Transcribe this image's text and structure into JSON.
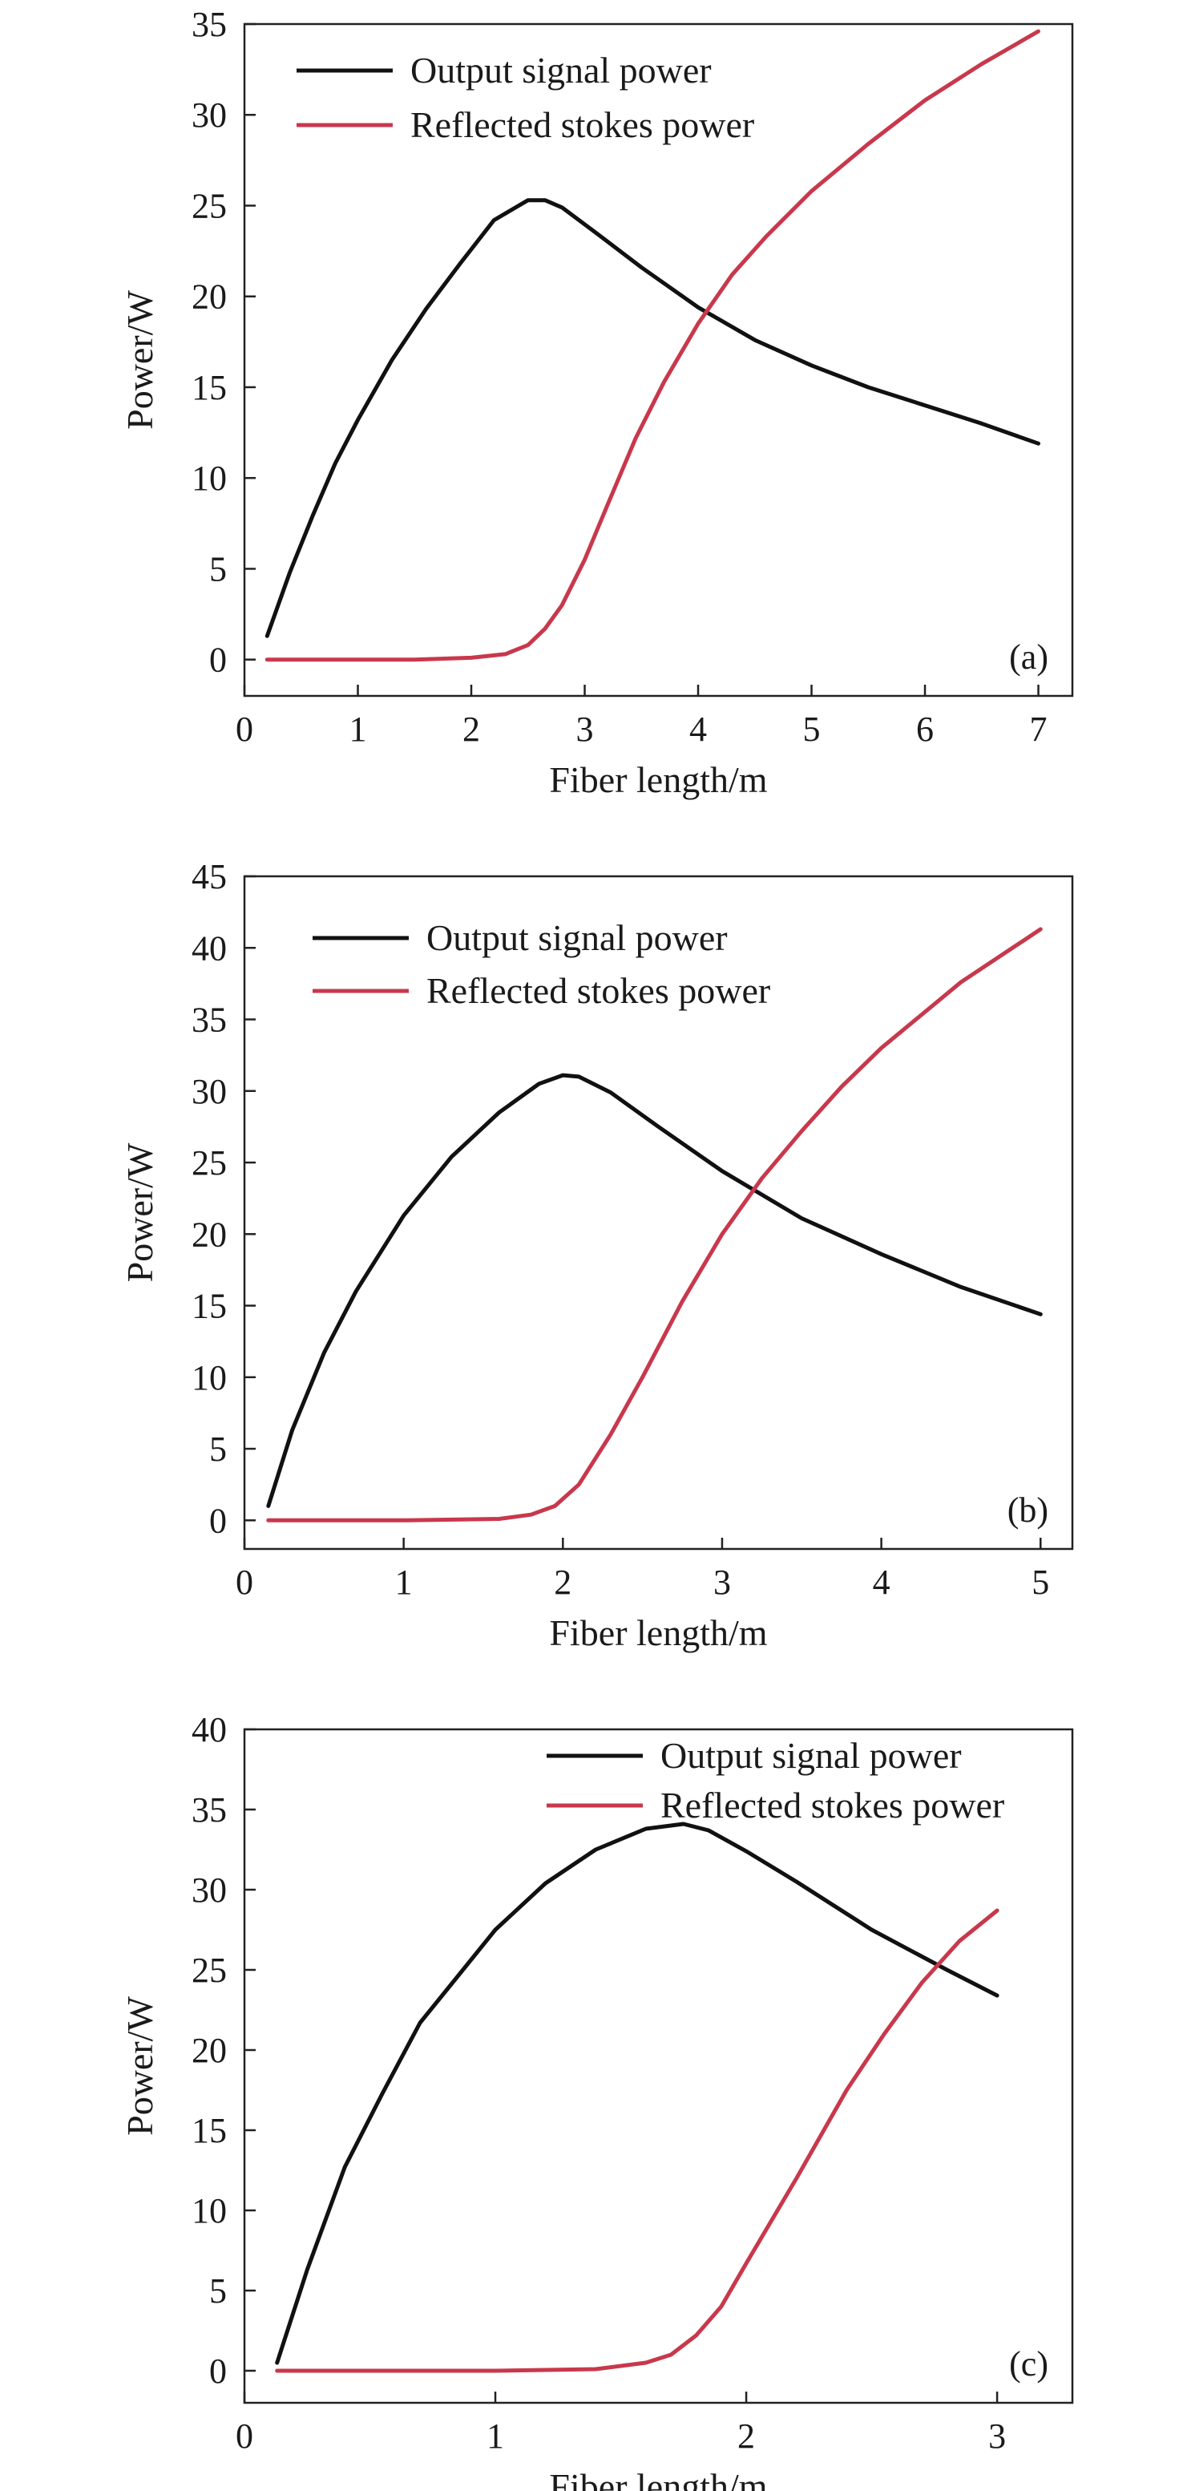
{
  "colors": {
    "signal": "#111111",
    "stokes": "#c8384c",
    "axis": "#222222"
  },
  "chart_data": [
    {
      "type": "line",
      "panel_label": "(a)",
      "xlabel": "Fiber length/m",
      "ylabel": "Power/W",
      "xlim": [
        0,
        7.3
      ],
      "ylim": [
        -2,
        35
      ],
      "xticks": [
        0,
        1,
        2,
        3,
        4,
        5,
        6,
        7
      ],
      "yticks": [
        0,
        5,
        10,
        15,
        20,
        25,
        30,
        35
      ],
      "legend_position": "top-left",
      "series": [
        {
          "name": "Output signal power",
          "color": "#111111",
          "x": [
            0.2,
            0.4,
            0.6,
            0.8,
            1.0,
            1.3,
            1.6,
            1.9,
            2.2,
            2.5,
            2.65,
            2.8,
            3.1,
            3.5,
            4.0,
            4.5,
            5.0,
            5.5,
            6.0,
            6.5,
            7.0
          ],
          "y": [
            1.3,
            4.8,
            7.9,
            10.8,
            13.2,
            16.5,
            19.3,
            21.8,
            24.2,
            25.3,
            25.3,
            24.9,
            23.5,
            21.6,
            19.4,
            17.6,
            16.2,
            15.0,
            14.0,
            13.0,
            11.9
          ]
        },
        {
          "name": "Reflected stokes power",
          "color": "#c8384c",
          "x": [
            0.2,
            1.0,
            1.5,
            2.0,
            2.3,
            2.5,
            2.65,
            2.8,
            3.0,
            3.2,
            3.45,
            3.7,
            4.0,
            4.3,
            4.6,
            5.0,
            5.5,
            6.0,
            6.5,
            7.0
          ],
          "y": [
            0,
            0,
            0,
            0.1,
            0.3,
            0.8,
            1.7,
            3.0,
            5.5,
            8.5,
            12.2,
            15.3,
            18.5,
            21.2,
            23.3,
            25.8,
            28.4,
            30.8,
            32.8,
            34.6
          ]
        }
      ]
    },
    {
      "type": "line",
      "panel_label": "(b)",
      "xlabel": "Fiber length/m",
      "ylabel": "Power/W",
      "xlim": [
        0,
        5.2
      ],
      "ylim": [
        -2,
        45
      ],
      "xticks": [
        0,
        1,
        2,
        3,
        4,
        5
      ],
      "yticks": [
        0,
        5,
        10,
        15,
        20,
        25,
        30,
        35,
        40,
        45
      ],
      "legend_position": "top-left",
      "series": [
        {
          "name": "Output signal power",
          "color": "#111111",
          "x": [
            0.15,
            0.3,
            0.5,
            0.7,
            1.0,
            1.3,
            1.6,
            1.85,
            2.0,
            2.1,
            2.3,
            2.6,
            3.0,
            3.5,
            4.0,
            4.5,
            5.0
          ],
          "y": [
            1.0,
            6.3,
            11.7,
            16.0,
            21.3,
            25.4,
            28.5,
            30.5,
            31.1,
            31.0,
            29.9,
            27.5,
            24.4,
            21.1,
            18.6,
            16.3,
            14.4
          ]
        },
        {
          "name": "Reflected stokes power",
          "color": "#c8384c",
          "x": [
            0.15,
            1.0,
            1.6,
            1.8,
            1.95,
            2.1,
            2.3,
            2.5,
            2.75,
            3.0,
            3.25,
            3.5,
            3.75,
            4.0,
            4.5,
            5.0
          ],
          "y": [
            0,
            0,
            0.1,
            0.4,
            1.0,
            2.5,
            6.0,
            10.0,
            15.3,
            20.0,
            23.9,
            27.2,
            30.3,
            33.0,
            37.6,
            41.3
          ]
        }
      ]
    },
    {
      "type": "line",
      "panel_label": "(c)",
      "xlabel": "Fiber length/m",
      "ylabel": "Power/W",
      "xlim": [
        0,
        3.3
      ],
      "ylim": [
        -2,
        40
      ],
      "xticks": [
        0,
        1,
        2,
        3
      ],
      "yticks": [
        0,
        5,
        10,
        15,
        20,
        25,
        30,
        35,
        40
      ],
      "legend_position": "top-right",
      "series": [
        {
          "name": "Output signal power",
          "color": "#111111",
          "x": [
            0.13,
            0.25,
            0.4,
            0.55,
            0.7,
            0.85,
            1.0,
            1.2,
            1.4,
            1.6,
            1.75,
            1.85,
            2.0,
            2.2,
            2.5,
            2.8,
            3.0
          ],
          "y": [
            0.5,
            6.3,
            12.7,
            17.3,
            21.7,
            24.6,
            27.5,
            30.4,
            32.5,
            33.8,
            34.1,
            33.7,
            32.4,
            30.5,
            27.5,
            25.0,
            23.4
          ]
        },
        {
          "name": "Reflected stokes power",
          "color": "#c8384c",
          "x": [
            0.13,
            1.0,
            1.4,
            1.6,
            1.7,
            1.8,
            1.9,
            2.0,
            2.2,
            2.4,
            2.55,
            2.7,
            2.85,
            3.0
          ],
          "y": [
            0,
            0,
            0.1,
            0.5,
            1.0,
            2.2,
            4.0,
            6.7,
            12.0,
            17.5,
            21.0,
            24.2,
            26.8,
            28.7
          ]
        }
      ]
    }
  ]
}
